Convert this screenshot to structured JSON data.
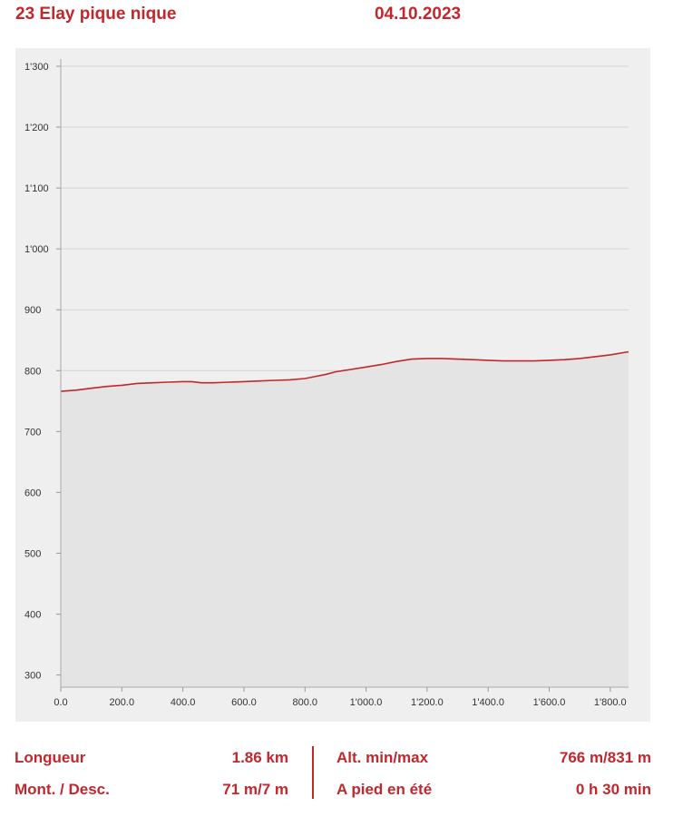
{
  "header": {
    "route_name": "23 Elay pique nique",
    "date": "04.10.2023"
  },
  "colors": {
    "accent": "#c0282d",
    "panel_bg": "#efefef",
    "area_fill": "#e4e4e4",
    "grid": "#d4d4d4"
  },
  "chart_data": {
    "type": "area",
    "title": "",
    "xlabel": "",
    "ylabel": "",
    "xlim": [
      0,
      1860
    ],
    "ylim": [
      280,
      1300
    ],
    "grid": true,
    "x_ticks": [
      0,
      200,
      400,
      600,
      800,
      1000,
      1200,
      1400,
      1600,
      1800
    ],
    "x_tick_labels": [
      "0.0",
      "200.0",
      "400.0",
      "600.0",
      "800.0",
      "1'000.0",
      "1'200.0",
      "1'400.0",
      "1'600.0",
      "1'800.0"
    ],
    "y_ticks": [
      300,
      400,
      500,
      600,
      700,
      800,
      900,
      1000,
      1100,
      1200,
      1300
    ],
    "y_tick_labels": [
      "300",
      "400",
      "500",
      "600",
      "700",
      "800",
      "900",
      "1'000",
      "1'100",
      "1'200",
      "1'300"
    ],
    "series": [
      {
        "x": [
          0,
          50,
          100,
          150,
          200,
          250,
          300,
          350,
          400,
          430,
          460,
          500,
          550,
          600,
          650,
          700,
          750,
          800,
          830,
          870,
          900,
          950,
          1000,
          1050,
          1100,
          1150,
          1200,
          1250,
          1300,
          1350,
          1400,
          1450,
          1500,
          1550,
          1600,
          1650,
          1700,
          1750,
          1800,
          1860
        ],
        "y": [
          766,
          768,
          771,
          774,
          776,
          779,
          780,
          781,
          782,
          782,
          780,
          780,
          781,
          782,
          783,
          784,
          785,
          787,
          790,
          794,
          798,
          802,
          806,
          810,
          815,
          819,
          820,
          820,
          819,
          818,
          817,
          816,
          816,
          816,
          817,
          818,
          820,
          823,
          826,
          831
        ]
      }
    ]
  },
  "stats": {
    "length_label": "Longueur",
    "length_value": "1.86 km",
    "altitude_label": "Alt. min/max",
    "altitude_value": "766 m/831 m",
    "ascent_label": "Mont. / Desc.",
    "ascent_value": "71 m/7 m",
    "walk_label": "A pied en été",
    "walk_value": "0 h 30 min"
  }
}
